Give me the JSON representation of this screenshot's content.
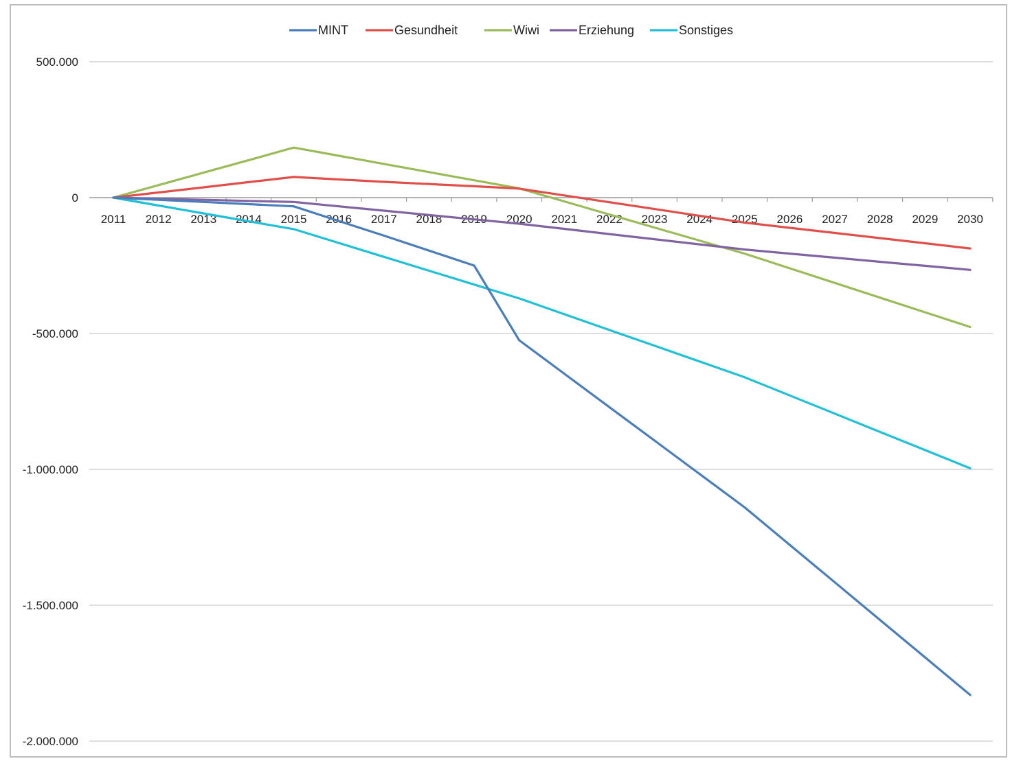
{
  "chart_data": {
    "type": "line",
    "title": "",
    "xlabel": "",
    "ylabel": "",
    "categories": [
      "2011",
      "2012",
      "2013",
      "2014",
      "2015",
      "2016",
      "2017",
      "2018",
      "2019",
      "2020",
      "2021",
      "2022",
      "2023",
      "2024",
      "2025",
      "2026",
      "2027",
      "2028",
      "2029",
      "2030"
    ],
    "ylim": [
      -2000000,
      500000
    ],
    "yticks": [
      500000,
      0,
      -500000,
      -1000000,
      -1500000,
      -2000000
    ],
    "ytick_labels": [
      "500.000",
      "0",
      "-500.000",
      "-1.000.000",
      "-1.500.000",
      "-2.000.000"
    ],
    "grid": true,
    "legend_position": "top",
    "series": [
      {
        "name": "MINT",
        "color": "#4a7ebb",
        "values": [
          0,
          -8000,
          -16000,
          -24000,
          -32000,
          -86000,
          -140000,
          -195000,
          -250000,
          -525000,
          -648000,
          -771000,
          -894000,
          -1017000,
          -1140000,
          -1278000,
          -1416000,
          -1554000,
          -1692000,
          -1830000
        ]
      },
      {
        "name": "Gesundheit",
        "color": "#e0504a",
        "values": [
          0,
          19000,
          38000,
          57000,
          76000,
          67000,
          58000,
          50000,
          42000,
          33000,
          8000,
          -17000,
          -42000,
          -67000,
          -92000,
          -111000,
          -130000,
          -149000,
          -168000,
          -187000
        ]
      },
      {
        "name": "Wiwi",
        "color": "#9bbb59",
        "values": [
          0,
          46000,
          92000,
          138000,
          184000,
          154000,
          124000,
          94000,
          64000,
          34000,
          -14000,
          -62000,
          -110000,
          -158000,
          -206000,
          -260000,
          -314000,
          -368000,
          -422000,
          -476000
        ]
      },
      {
        "name": "Erziehung",
        "color": "#8064a2",
        "values": [
          0,
          -4000,
          -8000,
          -12000,
          -16000,
          -32000,
          -48000,
          -64000,
          -80000,
          -96000,
          -115000,
          -134000,
          -153000,
          -172000,
          -191000,
          -206000,
          -221000,
          -236000,
          -251000,
          -266000
        ]
      },
      {
        "name": "Sonstiges",
        "color": "#20c0d8",
        "values": [
          0,
          -29000,
          -58000,
          -87000,
          -116000,
          -167000,
          -218000,
          -269000,
          -320000,
          -371000,
          -429000,
          -487000,
          -545000,
          -603000,
          -661000,
          -728000,
          -795000,
          -862000,
          -929000,
          -996000
        ]
      }
    ]
  }
}
